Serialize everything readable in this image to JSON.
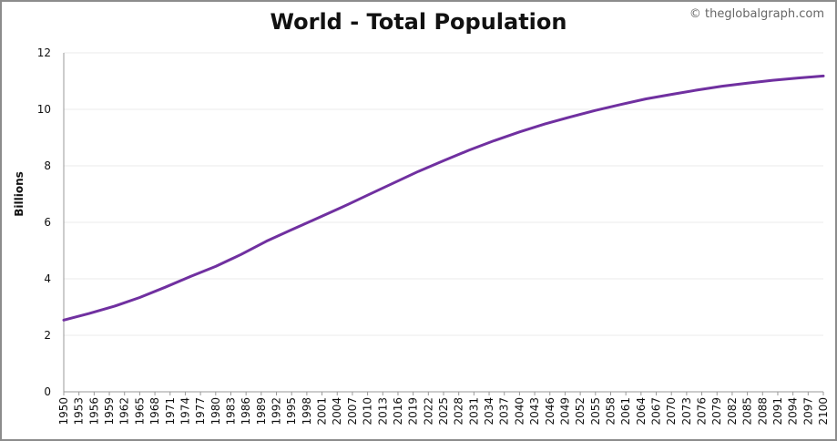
{
  "chart_data": {
    "type": "line",
    "title": "World - Total Population",
    "credit": "© theglobalgraph.com",
    "xlabel": "",
    "ylabel": "Billions",
    "xlim": [
      1950,
      2100
    ],
    "ylim": [
      0,
      12
    ],
    "yticks": [
      0,
      2,
      4,
      6,
      8,
      10,
      12
    ],
    "xticks": [
      1950,
      1953,
      1956,
      1959,
      1962,
      1965,
      1968,
      1971,
      1974,
      1977,
      1980,
      1983,
      1986,
      1989,
      1992,
      1995,
      1998,
      2001,
      2004,
      2007,
      2010,
      2013,
      2016,
      2019,
      2022,
      2025,
      2028,
      2031,
      2034,
      2037,
      2040,
      2043,
      2046,
      2049,
      2052,
      2055,
      2058,
      2061,
      2064,
      2067,
      2070,
      2073,
      2076,
      2079,
      2082,
      2085,
      2088,
      2091,
      2094,
      2097,
      2100
    ],
    "grid": true,
    "legend": "none",
    "series": [
      {
        "color": "#7030a0",
        "points": [
          [
            1950,
            2.54
          ],
          [
            1955,
            2.77
          ],
          [
            1960,
            3.03
          ],
          [
            1965,
            3.34
          ],
          [
            1970,
            3.7
          ],
          [
            1975,
            4.08
          ],
          [
            1980,
            4.44
          ],
          [
            1985,
            4.86
          ],
          [
            1990,
            5.33
          ],
          [
            1995,
            5.74
          ],
          [
            2000,
            6.14
          ],
          [
            2005,
            6.54
          ],
          [
            2010,
            6.96
          ],
          [
            2015,
            7.38
          ],
          [
            2020,
            7.8
          ],
          [
            2025,
            8.18
          ],
          [
            2030,
            8.55
          ],
          [
            2035,
            8.89
          ],
          [
            2040,
            9.2
          ],
          [
            2045,
            9.48
          ],
          [
            2050,
            9.73
          ],
          [
            2055,
            9.96
          ],
          [
            2060,
            10.17
          ],
          [
            2065,
            10.37
          ],
          [
            2070,
            10.53
          ],
          [
            2075,
            10.68
          ],
          [
            2080,
            10.82
          ],
          [
            2085,
            10.93
          ],
          [
            2090,
            11.03
          ],
          [
            2095,
            11.11
          ],
          [
            2100,
            11.18
          ]
        ]
      }
    ]
  }
}
